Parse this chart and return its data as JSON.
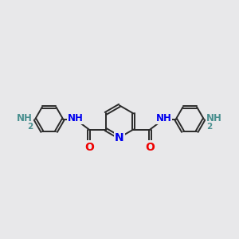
{
  "bg_color": "#e8e8ea",
  "bond_color": "#2a2a2a",
  "N_color": "#0000ee",
  "O_color": "#ee0000",
  "H_color": "#4a9090",
  "NH_color": "#0000ee",
  "font_size": 8.5,
  "linewidth": 1.4,
  "figsize": [
    3.0,
    3.0
  ],
  "dpi": 100,
  "xlim": [
    0,
    12
  ],
  "ylim": [
    2,
    9
  ]
}
